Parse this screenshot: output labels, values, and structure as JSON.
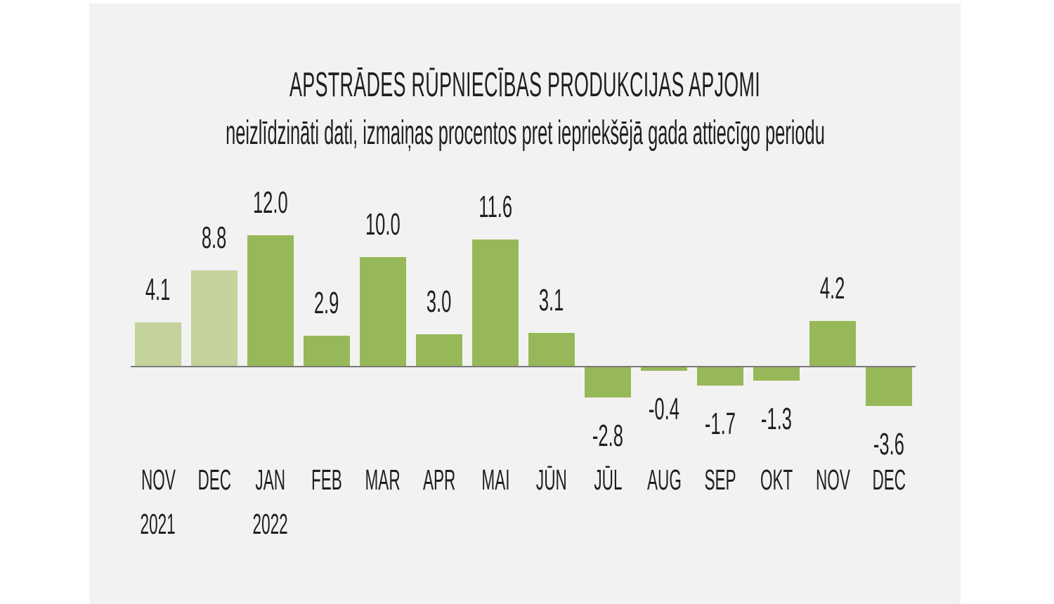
{
  "page": {
    "background": "#ffffff",
    "panel_background": "#f2f2f2",
    "text_color": "#1f1f1f"
  },
  "chart_data": {
    "type": "bar",
    "title": "APSTRĀDES RŪPNIECĪBAS PRODUKCIJAS APJOMI",
    "subtitle": "neizlīdzināti dati, izmaiņas procentos pret iepriekšējā gada attiecīgo periodu",
    "categories": [
      "NOV",
      "DEC",
      "JAN",
      "FEB",
      "MAR",
      "APR",
      "MAI",
      "JŪN",
      "JŪL",
      "AUG",
      "SEP",
      "OKT",
      "NOV",
      "DEC"
    ],
    "year_sublabels": [
      "2021",
      "",
      "2022",
      "",
      "",
      "",
      "",
      "",
      "",
      "",
      "",
      "",
      "",
      ""
    ],
    "values": [
      4.1,
      8.8,
      12.0,
      2.9,
      10.0,
      3.0,
      11.6,
      3.1,
      -2.8,
      -0.4,
      -1.7,
      -1.3,
      4.2,
      -3.6
    ],
    "value_labels": [
      "4.1",
      "8.8",
      "12.0",
      "2.9",
      "10.0",
      "3.0",
      "11.6",
      "3.1",
      "-2.8",
      "-0.4",
      "-1.7",
      "-1.3",
      "4.2",
      "-3.6"
    ],
    "prior_year_bar_count": 2,
    "palette": {
      "prior_year_bar": "#c4d29b",
      "current_year_bar": "#97b858",
      "axis_line": "#7a7a7a",
      "label_text": "#1f1f1f"
    },
    "ylim": [
      -4.5,
      13
    ],
    "grid": false,
    "legend": false,
    "data_labels": "outside",
    "xlabel": "",
    "ylabel": ""
  }
}
